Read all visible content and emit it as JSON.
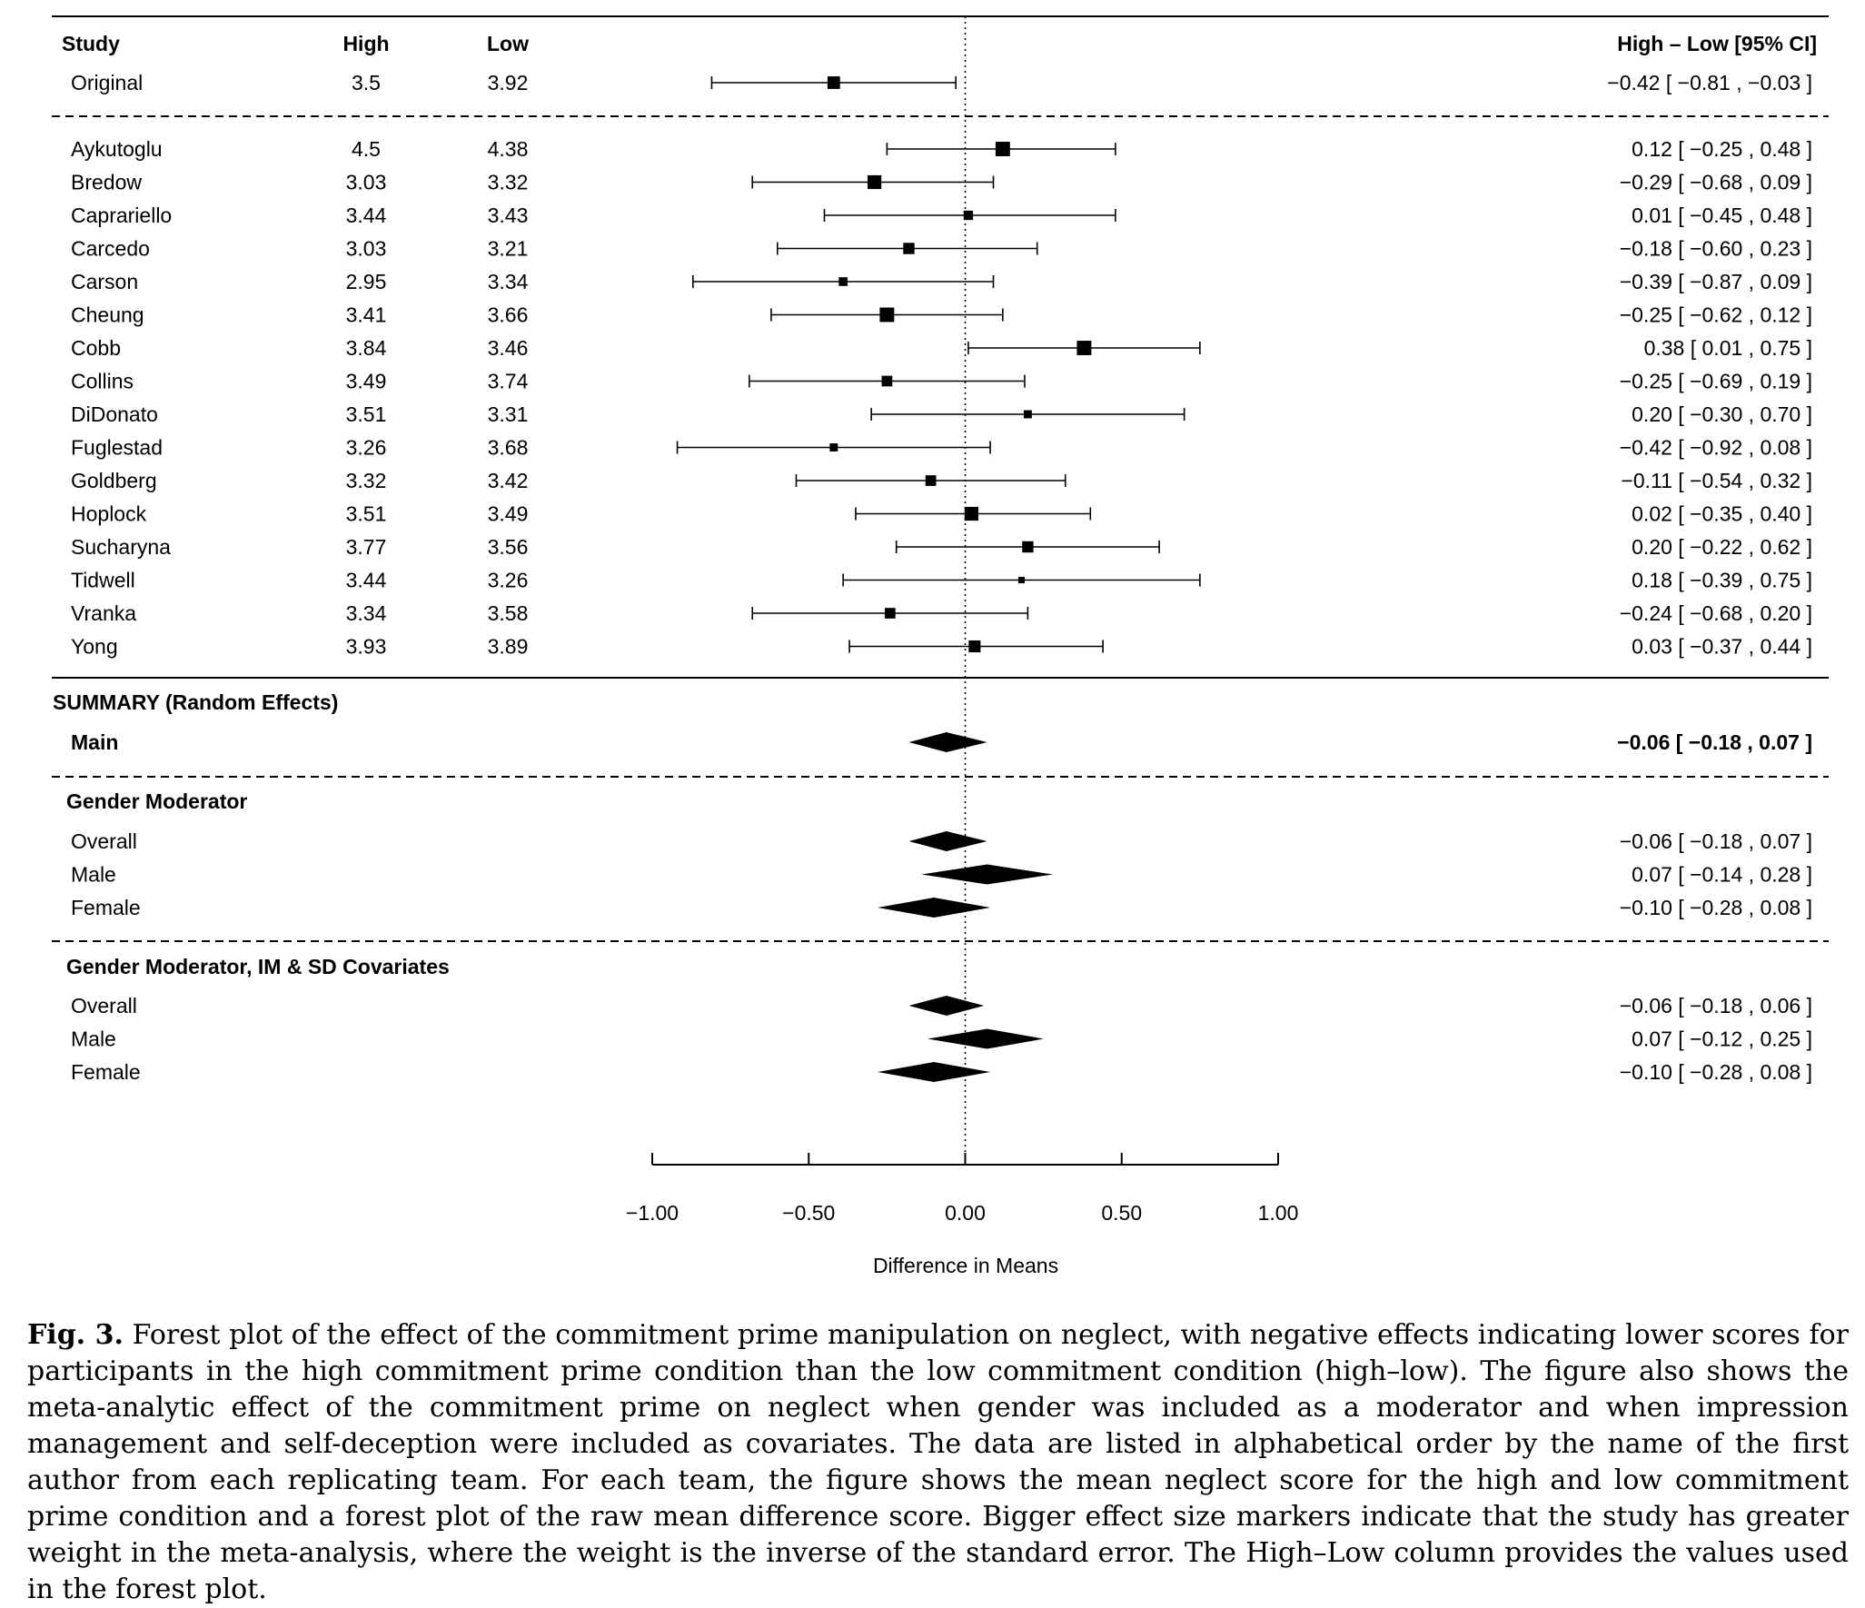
{
  "chart_data": {
    "type": "forest",
    "columns": {
      "study": "Study",
      "high": "High",
      "low": "Low",
      "effect": "High – Low [95% CI]"
    },
    "original": [
      {
        "study": "Original",
        "high": "3.5",
        "low": "3.92",
        "est": -0.42,
        "lo": -0.81,
        "hi": -0.03,
        "ci_text": "−0.42 [ −0.81 , −0.03 ]",
        "weight": 0.7
      }
    ],
    "studies": [
      {
        "study": "Aykutoglu",
        "high": "4.5",
        "low": "4.38",
        "est": 0.12,
        "lo": -0.25,
        "hi": 0.48,
        "ci_text": "0.12 [ −0.25 ,  0.48 ]",
        "weight": 0.85
      },
      {
        "study": "Bredow",
        "high": "3.03",
        "low": "3.32",
        "est": -0.29,
        "lo": -0.68,
        "hi": 0.09,
        "ci_text": "−0.29 [ −0.68 ,  0.09 ]",
        "weight": 0.8
      },
      {
        "study": "Caprariello",
        "high": "3.44",
        "low": "3.43",
        "est": 0.01,
        "lo": -0.45,
        "hi": 0.48,
        "ci_text": "0.01 [ −0.45 ,  0.48 ]",
        "weight": 0.45
      },
      {
        "study": "Carcedo",
        "high": "3.03",
        "low": "3.21",
        "est": -0.18,
        "lo": -0.6,
        "hi": 0.23,
        "ci_text": "−0.18 [ −0.60 ,  0.23 ]",
        "weight": 0.6
      },
      {
        "study": "Carson",
        "high": "2.95",
        "low": "3.34",
        "est": -0.39,
        "lo": -0.87,
        "hi": 0.09,
        "ci_text": "−0.39 [ −0.87 ,  0.09 ]",
        "weight": 0.4
      },
      {
        "study": "Cheung",
        "high": "3.41",
        "low": "3.66",
        "est": -0.25,
        "lo": -0.62,
        "hi": 0.12,
        "ci_text": "−0.25 [ −0.62 ,  0.12 ]",
        "weight": 0.85
      },
      {
        "study": "Cobb",
        "high": "3.84",
        "low": "3.46",
        "est": 0.38,
        "lo": 0.01,
        "hi": 0.75,
        "ci_text": "0.38 [  0.01 ,  0.75 ]",
        "weight": 0.85
      },
      {
        "study": "Collins",
        "high": "3.49",
        "low": "3.74",
        "est": -0.25,
        "lo": -0.69,
        "hi": 0.19,
        "ci_text": "−0.25 [ −0.69 ,  0.19 ]",
        "weight": 0.55
      },
      {
        "study": "DiDonato",
        "high": "3.51",
        "low": "3.31",
        "est": 0.2,
        "lo": -0.3,
        "hi": 0.7,
        "ci_text": "0.20 [ −0.30 ,  0.70 ]",
        "weight": 0.35
      },
      {
        "study": "Fuglestad",
        "high": "3.26",
        "low": "3.68",
        "est": -0.42,
        "lo": -0.92,
        "hi": 0.08,
        "ci_text": "−0.42 [ −0.92 ,  0.08 ]",
        "weight": 0.35
      },
      {
        "study": "Goldberg",
        "high": "3.32",
        "low": "3.42",
        "est": -0.11,
        "lo": -0.54,
        "hi": 0.32,
        "ci_text": "−0.11 [ −0.54 ,  0.32 ]",
        "weight": 0.55
      },
      {
        "study": "Hoplock",
        "high": "3.51",
        "low": "3.49",
        "est": 0.02,
        "lo": -0.35,
        "hi": 0.4,
        "ci_text": "0.02 [ −0.35 ,  0.40 ]",
        "weight": 0.8
      },
      {
        "study": "Sucharyna",
        "high": "3.77",
        "low": "3.56",
        "est": 0.2,
        "lo": -0.22,
        "hi": 0.62,
        "ci_text": "0.20 [ −0.22 ,  0.62 ]",
        "weight": 0.6
      },
      {
        "study": "Tidwell",
        "high": "3.44",
        "low": "3.26",
        "est": 0.18,
        "lo": -0.39,
        "hi": 0.75,
        "ci_text": "0.18 [ −0.39 ,  0.75 ]",
        "weight": 0.22
      },
      {
        "study": "Vranka",
        "high": "3.34",
        "low": "3.58",
        "est": -0.24,
        "lo": -0.68,
        "hi": 0.2,
        "ci_text": "−0.24 [ −0.68 ,  0.20 ]",
        "weight": 0.55
      },
      {
        "study": "Yong",
        "high": "3.93",
        "low": "3.89",
        "est": 0.03,
        "lo": -0.37,
        "hi": 0.44,
        "ci_text": "0.03 [ −0.37 ,  0.44 ]",
        "weight": 0.65
      }
    ],
    "summary": {
      "title": "SUMMARY (Random Effects)",
      "rows": [
        {
          "label": "Main",
          "est": -0.06,
          "lo": -0.18,
          "hi": 0.07,
          "ci_text": "−0.06 [ −0.18 , 0.07 ]",
          "bold": true
        }
      ]
    },
    "moderator_groups": [
      {
        "title": "Gender Moderator",
        "rows": [
          {
            "label": "Overall",
            "est": -0.06,
            "lo": -0.18,
            "hi": 0.07,
            "ci_text": "−0.06 [ −0.18 , 0.07 ]"
          },
          {
            "label": "Male",
            "est": 0.07,
            "lo": -0.14,
            "hi": 0.28,
            "ci_text": "0.07 [ −0.14 , 0.28 ]"
          },
          {
            "label": "Female",
            "est": -0.1,
            "lo": -0.28,
            "hi": 0.08,
            "ci_text": "−0.10 [ −0.28 , 0.08 ]"
          }
        ]
      },
      {
        "title": "Gender Moderator, IM & SD Covariates",
        "rows": [
          {
            "label": "Overall",
            "est": -0.06,
            "lo": -0.18,
            "hi": 0.06,
            "ci_text": "−0.06 [ −0.18 , 0.06 ]"
          },
          {
            "label": "Male",
            "est": 0.07,
            "lo": -0.12,
            "hi": 0.25,
            "ci_text": "0.07 [ −0.12 , 0.25 ]"
          },
          {
            "label": "Female",
            "est": -0.1,
            "lo": -0.28,
            "hi": 0.08,
            "ci_text": "−0.10 [ −0.28 , 0.08 ]"
          }
        ]
      }
    ],
    "x_axis": {
      "label": "Difference in Means",
      "ticks": [
        -1.0,
        -0.5,
        0.0,
        0.5,
        1.0
      ],
      "tick_labels": [
        "−1.00",
        "−0.50",
        "0.00",
        "0.50",
        "1.00"
      ],
      "xlim": [
        -1.0,
        1.0
      ]
    },
    "reference_line": 0,
    "reference_line_style": "dotted"
  },
  "caption": {
    "label": "Fig. 3.",
    "text": "Forest plot of the effect of the commitment prime manipulation on neglect, with negative effects indicating lower scores for par­ticipants in the high commitment prime condition than the low commitment condition (high–low). The figure also shows the meta-analytic effect of the commitment prime on neglect when gender was included as a moderator and when impression management and self-deception were included as covariates. The data are listed in alphabetical order by the name of the first author from each replicating team. For each team, the figure shows the mean neglect score for the high and low commitment prime condition and a forest plot of the raw mean differ­ence score. Bigger effect size markers indicate that the study has greater weight in the meta-analysis, where the weight is the inverse of the standard error. The High–Low column provides the values used in the forest plot."
  }
}
